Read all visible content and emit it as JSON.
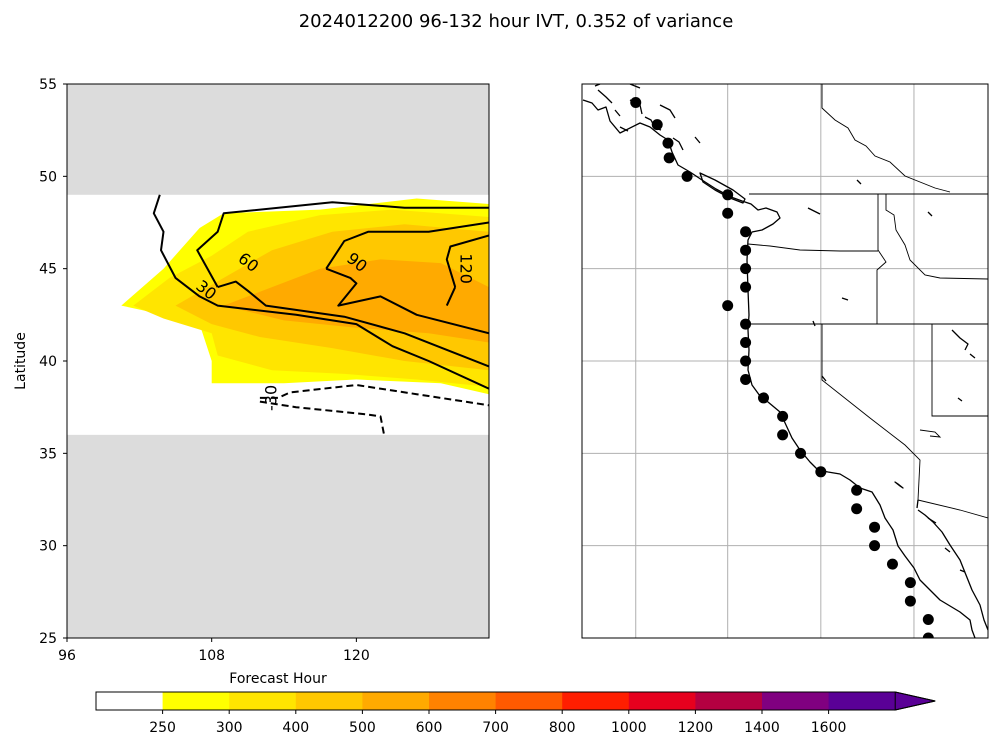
{
  "chart_data": [
    {
      "type": "contour",
      "title": "2024012200 96-132 hour IVT, 0.352 of variance",
      "xlabel": "Forecast Hour",
      "ylabel": "Latitude",
      "xlim": [
        96,
        131
      ],
      "ylim": [
        25,
        55
      ],
      "x_ticks": [
        "96",
        "108",
        "120"
      ],
      "y_ticks": [
        "25",
        "30",
        "35",
        "40",
        "45",
        "50",
        "55"
      ],
      "valid_lat_range": [
        36,
        49
      ],
      "filled_levels": [
        {
          "level": 250,
          "color": "#ffff00",
          "polygon": [
            [
              100.5,
              43
            ],
            [
              104,
              45
            ],
            [
              107,
              47.2
            ],
            [
              109,
              48
            ],
            [
              117,
              48.2
            ],
            [
              125,
              48.8
            ],
            [
              131,
              48.5
            ],
            [
              131,
              38.2
            ],
            [
              127,
              38.8
            ],
            [
              120,
              39
            ],
            [
              114,
              38.8
            ],
            [
              108,
              38.8
            ],
            [
              108,
              40
            ],
            [
              107,
              42
            ],
            [
              104,
              42.5
            ]
          ]
        },
        {
          "level": 300,
          "color": "#ffe500",
          "polygon": [
            [
              101.5,
              43
            ],
            [
              104.5,
              44.5
            ],
            [
              108,
              45.7
            ],
            [
              111,
              47
            ],
            [
              117,
              47.9
            ],
            [
              123,
              48.2
            ],
            [
              131,
              47.8
            ],
            [
              131,
              38.6
            ],
            [
              125,
              39
            ],
            [
              119,
              39.3
            ],
            [
              113,
              39.5
            ],
            [
              108.5,
              40.3
            ],
            [
              108,
              41.5
            ],
            [
              104,
              42.3
            ]
          ]
        },
        {
          "level": 400,
          "color": "#ffc800",
          "polygon": [
            [
              105,
              43
            ],
            [
              109,
              44.5
            ],
            [
              113,
              46
            ],
            [
              118,
              47
            ],
            [
              124,
              47.4
            ],
            [
              131,
              47
            ],
            [
              131,
              39.5
            ],
            [
              124,
              40
            ],
            [
              118,
              40.7
            ],
            [
              112,
              41.3
            ],
            [
              108,
              42
            ]
          ]
        },
        {
          "level": 500,
          "color": "#ffaa00",
          "polygon": [
            [
              109,
              43
            ],
            [
              113,
              44
            ],
            [
              117,
              45
            ],
            [
              122,
              45.5
            ],
            [
              127,
              45.3
            ],
            [
              131,
              44
            ],
            [
              131,
              41
            ],
            [
              126,
              41.5
            ],
            [
              120,
              41.8
            ],
            [
              114,
              42.2
            ]
          ]
        }
      ],
      "contour_lines": [
        {
          "label": "30",
          "style": "solid",
          "points": [
            [
              103.7,
              49
            ],
            [
              103.2,
              48
            ],
            [
              104,
              47
            ],
            [
              103.8,
              46
            ],
            [
              105,
              44.5
            ],
            [
              107,
              43.5
            ],
            [
              108.5,
              43
            ],
            [
              115,
              42.5
            ],
            [
              120,
              42
            ],
            [
              123,
              40.8
            ],
            [
              126,
              40
            ],
            [
              131,
              38.5
            ]
          ]
        },
        {
          "label": "60",
          "style": "solid",
          "points": [
            [
              108.5,
              44
            ],
            [
              106.8,
              46
            ],
            [
              108.5,
              47
            ],
            [
              109,
              48
            ],
            [
              118,
              48.6
            ],
            [
              124,
              48.3
            ],
            [
              131,
              48.3
            ]
          ]
        },
        {
          "label": "60",
          "style": "solid",
          "points": [
            [
              108.5,
              44
            ],
            [
              110,
              44.3
            ],
            [
              111,
              43.8
            ],
            [
              112.5,
              43
            ],
            [
              119,
              42.4
            ],
            [
              124,
              41.5
            ],
            [
              131,
              39.7
            ]
          ]
        },
        {
          "label": "90",
          "style": "solid",
          "points": [
            [
              117.5,
              45
            ],
            [
              119,
              46.5
            ],
            [
              121,
              47
            ],
            [
              126,
              47
            ],
            [
              131,
              47.5
            ]
          ]
        },
        {
          "label": "90",
          "style": "solid",
          "points": [
            [
              117.5,
              45
            ],
            [
              119.5,
              44.5
            ],
            [
              120,
              44.2
            ],
            [
              118.5,
              43
            ],
            [
              122,
              43.5
            ],
            [
              125,
              42.5
            ],
            [
              131,
              41.5
            ]
          ]
        },
        {
          "label": "120",
          "style": "solid",
          "points": [
            [
              128.2,
              44
            ],
            [
              127.5,
              45.5
            ],
            [
              127.8,
              46.2
            ],
            [
              131,
              46.8
            ]
          ]
        },
        {
          "label": "120",
          "style": "solid",
          "points": [
            [
              128.2,
              44
            ],
            [
              127.5,
              43
            ]
          ]
        },
        {
          "label": "-30",
          "style": "dashed",
          "points": [
            [
              112,
              38
            ],
            [
              113.5,
              38
            ],
            [
              114.5,
              38.3
            ],
            [
              120,
              38.7
            ],
            [
              125,
              38.2
            ],
            [
              131,
              37.6
            ]
          ]
        },
        {
          "label": "-30",
          "style": "dashed",
          "points": [
            [
              112,
              37.8
            ],
            [
              115,
              37.5
            ],
            [
              118,
              37.3
            ],
            [
              121,
              37.1
            ],
            [
              122,
              37
            ],
            [
              122.3,
              36
            ]
          ]
        }
      ],
      "contour_labels": [
        {
          "text": "30",
          "x": 107.5,
          "y": 43.8,
          "rotation": 38
        },
        {
          "text": "60",
          "x": 111,
          "y": 45.3,
          "rotation": 38
        },
        {
          "text": "90",
          "x": 120,
          "y": 45.3,
          "rotation": 38
        },
        {
          "text": "120",
          "x": 129,
          "y": 45,
          "rotation": 90
        },
        {
          "text": "-30",
          "x": 113,
          "y": 38,
          "rotation": -90
        }
      ],
      "grid": false,
      "colors": {
        "masked": "#dcdcdc",
        "lines": "#000000"
      }
    },
    {
      "type": "map",
      "lon_range": [
        -140,
        -106
      ],
      "lat_range": [
        25,
        55
      ],
      "gridlines": true,
      "grid_lons": [
        -135.5,
        -127.8,
        -120,
        -112.2
      ],
      "grid_lats": [
        30,
        35,
        40,
        45,
        50
      ],
      "points": [
        {
          "lon": -135.5,
          "lat": 54
        },
        {
          "lon": -133.7,
          "lat": 52.8
        },
        {
          "lon": -132.8,
          "lat": 51.8
        },
        {
          "lon": -132.7,
          "lat": 51
        },
        {
          "lon": -131.2,
          "lat": 50
        },
        {
          "lon": -127.8,
          "lat": 49
        },
        {
          "lon": -127.8,
          "lat": 48
        },
        {
          "lon": -126.3,
          "lat": 47
        },
        {
          "lon": -126.3,
          "lat": 46
        },
        {
          "lon": -126.3,
          "lat": 45
        },
        {
          "lon": -126.3,
          "lat": 44
        },
        {
          "lon": -127.8,
          "lat": 43
        },
        {
          "lon": -126.3,
          "lat": 42
        },
        {
          "lon": -126.3,
          "lat": 41
        },
        {
          "lon": -126.3,
          "lat": 40
        },
        {
          "lon": -126.3,
          "lat": 39
        },
        {
          "lon": -124.8,
          "lat": 38
        },
        {
          "lon": -123.2,
          "lat": 37
        },
        {
          "lon": -123.2,
          "lat": 36
        },
        {
          "lon": -121.7,
          "lat": 35
        },
        {
          "lon": -120,
          "lat": 34
        },
        {
          "lon": -117,
          "lat": 33
        },
        {
          "lon": -117,
          "lat": 32
        },
        {
          "lon": -115.5,
          "lat": 31
        },
        {
          "lon": -115.5,
          "lat": 30
        },
        {
          "lon": -114,
          "lat": 29
        },
        {
          "lon": -112.5,
          "lat": 28
        },
        {
          "lon": -112.5,
          "lat": 27
        },
        {
          "lon": -111,
          "lat": 26
        },
        {
          "lon": -111,
          "lat": 25
        }
      ]
    },
    {
      "type": "colorbar",
      "tick_labels": [
        "250",
        "300",
        "400",
        "500",
        "600",
        "700",
        "800",
        "1000",
        "1200",
        "1400",
        "1600"
      ],
      "colors": [
        "#ffffff",
        "#ffff00",
        "#ffe500",
        "#ffc800",
        "#ffaa00",
        "#ff8200",
        "#ff5a00",
        "#ff1e00",
        "#e6001e",
        "#b40041",
        "#800080",
        "#5a0096"
      ],
      "extend": "max"
    }
  ]
}
